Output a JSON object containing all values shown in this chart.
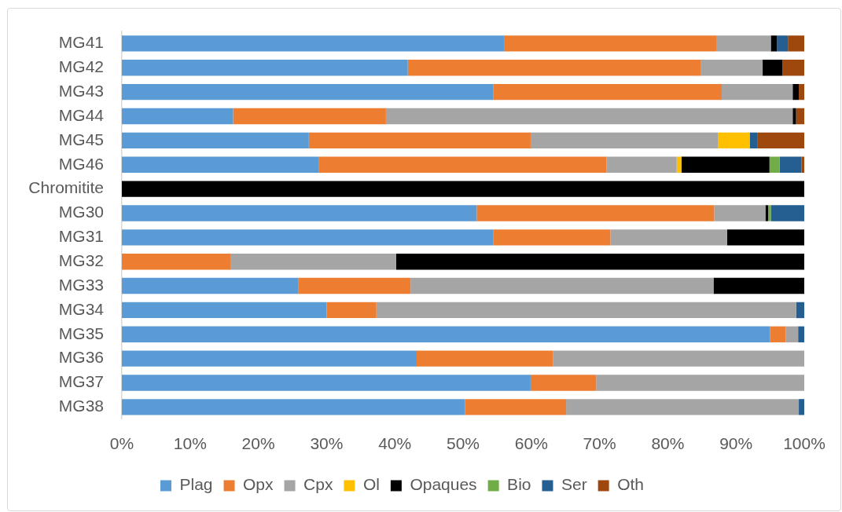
{
  "chart_data": {
    "type": "bar",
    "orientation": "horizontal",
    "stacked": true,
    "categories": [
      "MG41",
      "MG42",
      "MG43",
      "MG44",
      "MG45",
      "MG46",
      "Chromitite",
      "MG30",
      "MG31",
      "MG32",
      "MG33",
      "MG34",
      "MG35",
      "MG36",
      "MG37",
      "MG38"
    ],
    "series": [
      {
        "name": "Plag",
        "color": "#5b9bd5",
        "values": [
          56.0,
          41.9,
          54.4,
          16.3,
          27.4,
          28.9,
          0,
          52.0,
          54.4,
          0,
          25.9,
          30.0,
          95.0,
          43.2,
          59.9,
          50.3
        ]
      },
      {
        "name": "Opx",
        "color": "#ed7d31",
        "values": [
          31.1,
          42.9,
          33.5,
          22.4,
          32.5,
          42.1,
          0,
          34.8,
          17.2,
          15.9,
          16.4,
          7.3,
          2.3,
          20.0,
          9.6,
          14.8
        ]
      },
      {
        "name": "Cpx",
        "color": "#a5a5a5",
        "values": [
          8.0,
          9.1,
          10.4,
          59.6,
          27.5,
          10.3,
          0,
          7.5,
          17.1,
          24.3,
          44.4,
          61.5,
          1.8,
          36.8,
          30.5,
          34.1
        ]
      },
      {
        "name": "Ol",
        "color": "#ffc000",
        "values": [
          0,
          0,
          0,
          0,
          4.6,
          0.7,
          0,
          0,
          0,
          0,
          0,
          0,
          0,
          0,
          0,
          0
        ]
      },
      {
        "name": "Opaques",
        "color": "#000000",
        "values": [
          0.9,
          2.9,
          0.9,
          0.5,
          0,
          12.9,
          100,
          0.4,
          11.3,
          59.8,
          13.3,
          0,
          0,
          0,
          0,
          0
        ]
      },
      {
        "name": "Bio",
        "color": "#70ad47",
        "values": [
          0,
          0,
          0,
          0,
          0,
          1.5,
          0,
          0.4,
          0,
          0,
          0,
          0,
          0,
          0,
          0,
          0
        ]
      },
      {
        "name": "Ser",
        "color": "#255e91",
        "values": [
          1.6,
          0,
          0,
          0,
          1.1,
          3.2,
          0,
          4.9,
          0,
          0,
          0,
          1.2,
          0.9,
          0,
          0,
          0.8
        ]
      },
      {
        "name": "Oth",
        "color": "#9e480e",
        "values": [
          2.4,
          3.2,
          0.8,
          1.2,
          6.9,
          0.4,
          0,
          0,
          0,
          0,
          0,
          0,
          0,
          0,
          0,
          0
        ]
      }
    ],
    "xlim": [
      0,
      100
    ],
    "xticks": [
      {
        "value": 0,
        "label": "0%"
      },
      {
        "value": 10,
        "label": "10%"
      },
      {
        "value": 20,
        "label": "20%"
      },
      {
        "value": 30,
        "label": "30%"
      },
      {
        "value": 40,
        "label": "40%"
      },
      {
        "value": 50,
        "label": "50%"
      },
      {
        "value": 60,
        "label": "60%"
      },
      {
        "value": 70,
        "label": "70%"
      },
      {
        "value": 80,
        "label": "80%"
      },
      {
        "value": 90,
        "label": "90%"
      },
      {
        "value": 100,
        "label": "100%"
      }
    ],
    "legend": "bottom"
  }
}
